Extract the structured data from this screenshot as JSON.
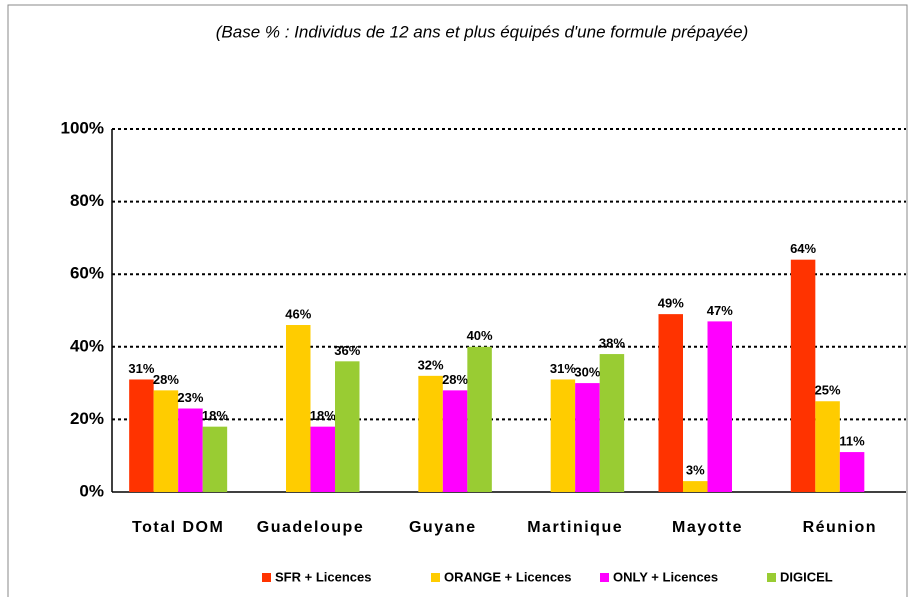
{
  "chart_data": {
    "type": "bar",
    "subtitle": "(Base % : Individus de 12 ans et plus équipés d'une formule prépayée)",
    "categories": [
      "Total DOM",
      "Guadeloupe",
      "Guyane",
      "Martinique",
      "Mayotte",
      "Réunion"
    ],
    "series": [
      {
        "name": "SFR + Licences",
        "color": "#ff3300",
        "values": [
          31,
          null,
          null,
          null,
          49,
          64
        ],
        "value_labels": [
          "31%",
          null,
          null,
          null,
          "49%",
          "64%"
        ]
      },
      {
        "name": "ORANGE + Licences",
        "color": "#ffcc00",
        "values": [
          28,
          46,
          32,
          31,
          3,
          25
        ],
        "value_labels": [
          "28%",
          "46%",
          "32%",
          "31%",
          "3%",
          "25%"
        ]
      },
      {
        "name": "ONLY + Licences",
        "color": "#ff00ff",
        "values": [
          23,
          18,
          28,
          30,
          47,
          11
        ],
        "value_labels": [
          "23%",
          "18%",
          "28%",
          "30%",
          "47%",
          "11%"
        ]
      },
      {
        "name": "DIGICEL",
        "color": "#99cc33",
        "values": [
          18,
          36,
          40,
          38,
          null,
          null
        ],
        "value_labels": [
          "18%",
          "36%",
          "40%",
          "38%",
          null,
          null
        ]
      }
    ],
    "ylim": [
      0,
      100
    ],
    "yticks": [
      {
        "value": 0,
        "label": "0%"
      },
      {
        "value": 20,
        "label": "20%"
      },
      {
        "value": 40,
        "label": "40%"
      },
      {
        "value": 60,
        "label": "60%"
      },
      {
        "value": 80,
        "label": "80%"
      },
      {
        "value": 100,
        "label": "100%"
      }
    ],
    "grid": true,
    "legend": "bottom"
  }
}
